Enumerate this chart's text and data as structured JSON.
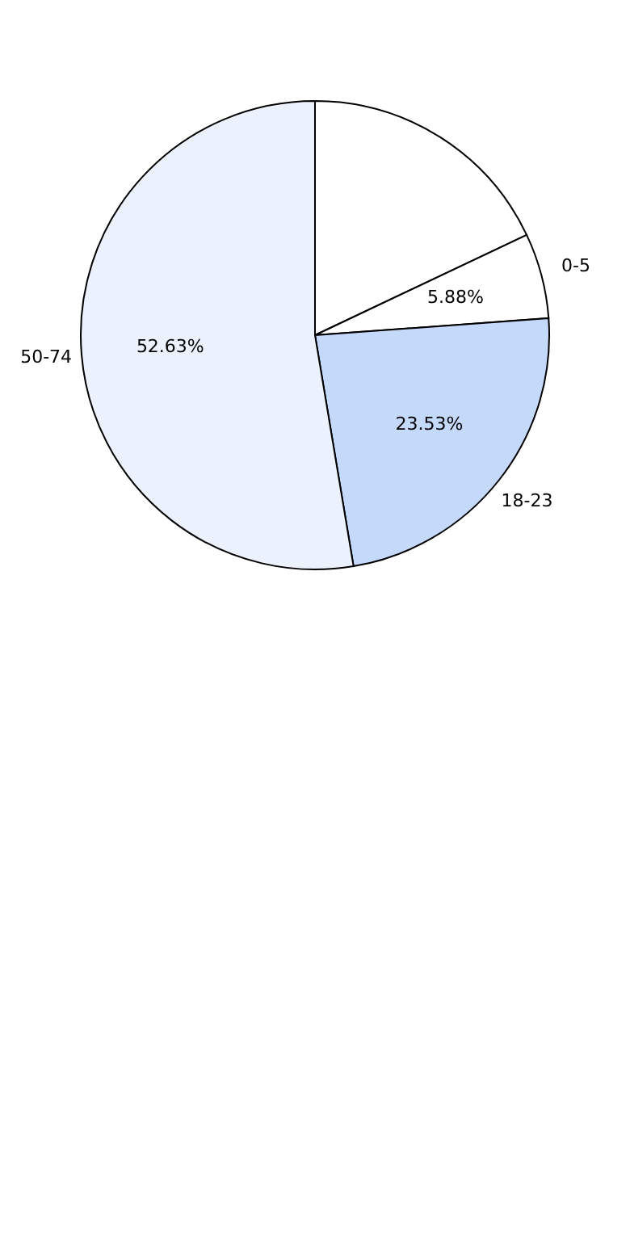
{
  "chart_data": {
    "type": "pie",
    "categories": [
      null,
      "0-5",
      "18-23",
      "50-74"
    ],
    "values": [
      17.96,
      5.88,
      23.53,
      52.63
    ],
    "colors": [
      "#ffffff",
      "#ffffff",
      "#c5d9fb",
      "#ebf1fd"
    ],
    "value_labels": [
      null,
      "5.88%",
      "23.53%",
      "52.63%"
    ],
    "legend": false
  }
}
